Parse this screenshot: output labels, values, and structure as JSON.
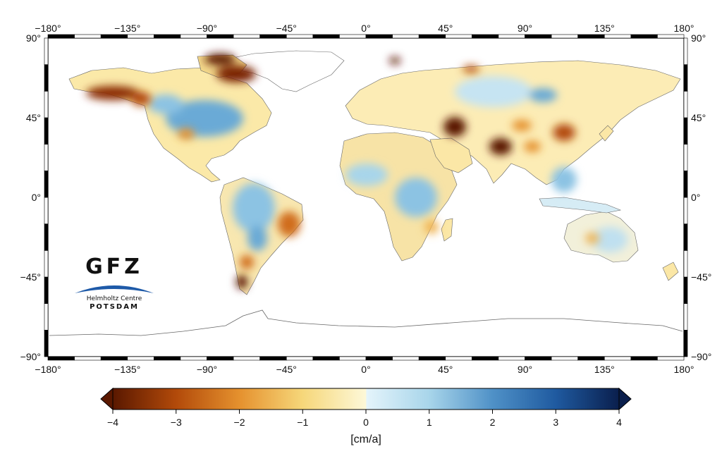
{
  "map": {
    "lon_ticks": [
      "−180°",
      "−135°",
      "−90°",
      "−45°",
      "0°",
      "45°",
      "90°",
      "135°",
      "180°"
    ],
    "lon_values": [
      -180,
      -135,
      -90,
      -45,
      0,
      45,
      90,
      135,
      180
    ],
    "lat_ticks_left": [
      "90°",
      "45°",
      "0°",
      "−45°",
      "−90°"
    ],
    "lat_ticks_right": [
      "90°",
      "45°",
      "0°",
      "−45°",
      "−90°"
    ],
    "lat_values": [
      90,
      45,
      0,
      -45,
      -90
    ],
    "projection": "equirectangular",
    "background_color": "#ffffff",
    "field_hotspots": [
      {
        "region": "Alaska / Gulf of Alaska",
        "lon": -142,
        "lat": 61,
        "value": -4
      },
      {
        "region": "Canadian Arctic Archipelago",
        "lon": -82,
        "lat": 78,
        "value": -4
      },
      {
        "region": "Greenland west",
        "lon": -52,
        "lat": 72,
        "value": -2.5
      },
      {
        "region": "Svalbard",
        "lon": 17,
        "lat": 79,
        "value": -4
      },
      {
        "region": "Caspian Sea",
        "lon": 51,
        "lat": 41,
        "value": -4
      },
      {
        "region": "North India",
        "lon": 77,
        "lat": 29,
        "value": -4
      },
      {
        "region": "North China Plain",
        "lon": 113,
        "lat": 37,
        "value": -3
      },
      {
        "region": "Patagonia",
        "lon": -73,
        "lat": -49,
        "value": -4
      },
      {
        "region": "Eastern Brazil",
        "lon": -41,
        "lat": -13,
        "value": -2.5
      },
      {
        "region": "Great Lakes / Canada",
        "lon": -95,
        "lat": 52,
        "value": 2
      },
      {
        "region": "Amazon",
        "lon": -62,
        "lat": -5,
        "value": 1.5
      },
      {
        "region": "Congo / East Africa",
        "lon": 30,
        "lat": -5,
        "value": 1.5
      },
      {
        "region": "Siberia",
        "lon": 95,
        "lat": 60,
        "value": 1.5
      },
      {
        "region": "Southeast Asia",
        "lon": 110,
        "lat": 15,
        "value": 1.5
      }
    ]
  },
  "colorbar": {
    "ticks": [
      "−4",
      "−3",
      "−2",
      "−1",
      "0",
      "1",
      "2",
      "3",
      "4"
    ],
    "min": -4,
    "max": 4,
    "unit": "[cm/a]",
    "stops": [
      {
        "value": -4,
        "color": "#5a1800"
      },
      {
        "value": -3,
        "color": "#b24a0a"
      },
      {
        "value": -2,
        "color": "#e5912e"
      },
      {
        "value": -1,
        "color": "#f6d77a"
      },
      {
        "value": 0,
        "color": "#fdf8d8"
      },
      {
        "value": 0.01,
        "color": "#e4f4fb"
      },
      {
        "value": 1,
        "color": "#a8d5ea"
      },
      {
        "value": 2,
        "color": "#4f91c7"
      },
      {
        "value": 3,
        "color": "#1f5aa0"
      },
      {
        "value": 4,
        "color": "#0a1f4d"
      }
    ]
  },
  "logo": {
    "title": "GFZ",
    "subtitle": "Helmholtz Centre",
    "location": "POTSDAM",
    "swoosh_color": "#1e5aa8"
  }
}
